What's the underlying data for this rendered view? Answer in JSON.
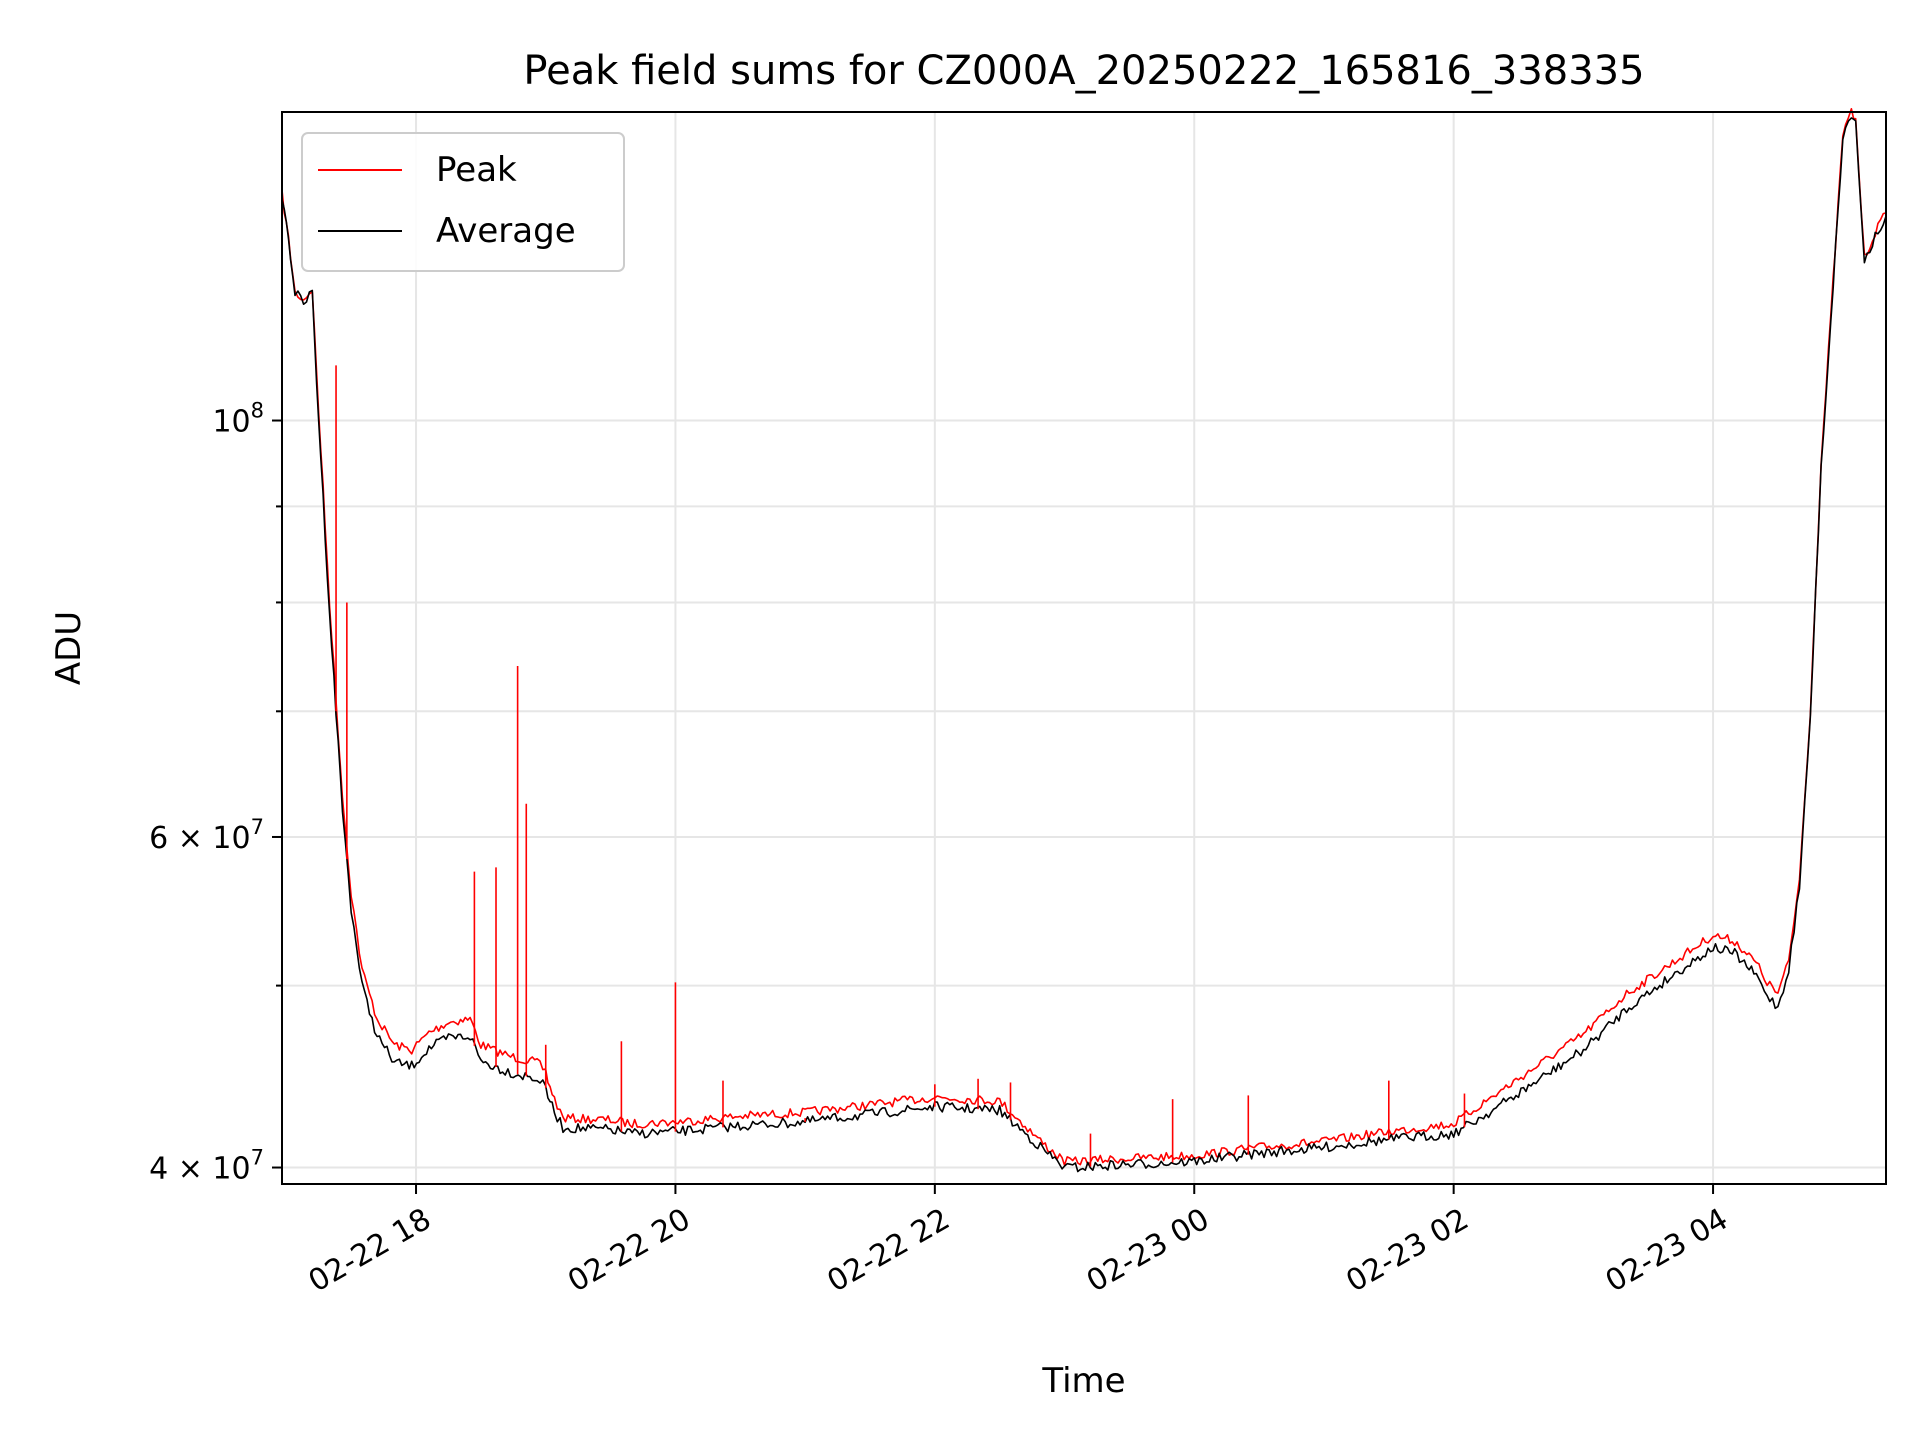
{
  "chart_data": {
    "type": "line",
    "title": "Peak field sums for CZ000A_20250222_165816_338335",
    "xlabel": "Time",
    "ylabel": "ADU",
    "yscale": "log",
    "xlim": [
      "2025-02-22T16:58",
      "2025-02-23T05:20"
    ],
    "ylim": [
      39200000,
      146000000
    ],
    "grid": true,
    "legend": "top-left",
    "xticks": [
      {
        "value": "2025-02-22T18:00",
        "label": "02-22 18"
      },
      {
        "value": "2025-02-22T20:00",
        "label": "02-22 20"
      },
      {
        "value": "2025-02-22T22:00",
        "label": "02-22 22"
      },
      {
        "value": "2025-02-23T00:00",
        "label": "02-23 00"
      },
      {
        "value": "2025-02-23T02:00",
        "label": "02-23 02"
      },
      {
        "value": "2025-02-23T04:00",
        "label": "02-23 04"
      }
    ],
    "yticks_major": [
      {
        "value": 100000000,
        "base": "10",
        "exp": "8",
        "mant": ""
      },
      {
        "value": 60000000,
        "base": "10",
        "exp": "7",
        "mant": "6"
      },
      {
        "value": 40000000,
        "base": "10",
        "exp": "7",
        "mant": "4"
      }
    ],
    "yticks_minor": [
      50000000,
      70000000,
      80000000,
      90000000
    ],
    "series": [
      {
        "name": "Peak",
        "color": "#ff0000",
        "x": [
          "2025-02-22T16:58",
          "2025-02-22T17:01",
          "2025-02-22T17:04",
          "2025-02-22T17:08",
          "2025-02-22T17:12",
          "2025-02-22T17:14",
          "2025-02-22T17:17",
          "2025-02-22T17:20",
          "2025-02-22T17:23",
          "2025-02-22T17:26",
          "2025-02-22T17:30",
          "2025-02-22T17:35",
          "2025-02-22T17:42",
          "2025-02-22T17:50",
          "2025-02-22T17:58",
          "2025-02-22T18:06",
          "2025-02-22T18:15",
          "2025-02-22T18:25",
          "2025-02-22T18:30",
          "2025-02-22T18:40",
          "2025-02-22T18:45",
          "2025-02-22T18:56",
          "2025-02-22T19:00",
          "2025-02-22T19:01",
          "2025-02-22T19:04",
          "2025-02-22T19:08",
          "2025-02-22T19:30",
          "2025-02-22T19:40",
          "2025-02-22T20:00",
          "2025-02-22T20:30",
          "2025-02-22T21:00",
          "2025-02-22T21:30",
          "2025-02-22T22:00",
          "2025-02-22T22:30",
          "2025-02-22T22:50",
          "2025-02-22T23:00",
          "2025-02-22T23:05",
          "2025-02-22T23:20",
          "2025-02-22T23:40",
          "2025-02-23T00:00",
          "2025-02-23T00:30",
          "2025-02-23T01:00",
          "2025-02-23T01:30",
          "2025-02-23T02:00",
          "2025-02-23T02:15",
          "2025-02-23T02:30",
          "2025-02-23T03:00",
          "2025-02-23T03:20",
          "2025-02-23T03:40",
          "2025-02-23T04:00",
          "2025-02-23T04:10",
          "2025-02-23T04:20",
          "2025-02-23T04:25",
          "2025-02-23T04:30",
          "2025-02-23T04:35",
          "2025-02-23T04:40",
          "2025-02-23T04:45",
          "2025-02-23T04:50",
          "2025-02-23T05:00",
          "2025-02-23T05:04",
          "2025-02-23T05:06",
          "2025-02-23T05:10",
          "2025-02-23T05:15",
          "2025-02-23T05:20"
        ],
        "y": [
          132000000,
          125000000,
          117000000,
          116000000,
          117500000,
          106000000,
          92000000,
          80000000,
          71000000,
          63000000,
          56000000,
          51000000,
          48000000,
          46500000,
          46200000,
          47200000,
          47800000,
          48000000,
          46500000,
          46000000,
          45800000,
          45500000,
          45000000,
          44500000,
          43500000,
          42500000,
          42400000,
          42200000,
          42300000,
          42600000,
          42800000,
          43200000,
          43600000,
          43400000,
          41200000,
          40300000,
          40300000,
          40400000,
          40500000,
          40600000,
          41000000,
          41300000,
          41800000,
          42200000,
          43400000,
          44600000,
          47100000,
          49500000,
          51300000,
          53200000,
          52800000,
          51400000,
          50200000,
          49500000,
          51500000,
          57000000,
          70000000,
          95000000,
          142000000,
          146000000,
          144500000,
          122000000,
          126000000,
          129000000
        ],
        "spikes": [
          {
            "x": "2025-02-22T17:23",
            "y": 107000000
          },
          {
            "x": "2025-02-22T17:28",
            "y": 80000000
          },
          {
            "x": "2025-02-22T18:27",
            "y": 57500000
          },
          {
            "x": "2025-02-22T18:37",
            "y": 57800000
          },
          {
            "x": "2025-02-22T18:47",
            "y": 74000000
          },
          {
            "x": "2025-02-22T18:51",
            "y": 62500000
          },
          {
            "x": "2025-02-22T19:00",
            "y": 46500000
          },
          {
            "x": "2025-02-22T19:35",
            "y": 46700000
          },
          {
            "x": "2025-02-22T20:00",
            "y": 50200000
          },
          {
            "x": "2025-02-22T20:22",
            "y": 44500000
          },
          {
            "x": "2025-02-22T21:00",
            "y": 42500000
          },
          {
            "x": "2025-02-22T22:00",
            "y": 44300000
          },
          {
            "x": "2025-02-22T22:20",
            "y": 44600000
          },
          {
            "x": "2025-02-22T22:35",
            "y": 44400000
          },
          {
            "x": "2025-02-22T23:12",
            "y": 41700000
          },
          {
            "x": "2025-02-22T23:50",
            "y": 43500000
          },
          {
            "x": "2025-02-23T00:25",
            "y": 43700000
          },
          {
            "x": "2025-02-23T01:30",
            "y": 44500000
          },
          {
            "x": "2025-02-23T02:05",
            "y": 43800000
          }
        ]
      },
      {
        "name": "Average",
        "color": "#000000",
        "x": [
          "2025-02-22T16:58",
          "2025-02-22T17:01",
          "2025-02-22T17:04",
          "2025-02-22T17:08",
          "2025-02-22T17:12",
          "2025-02-22T17:14",
          "2025-02-22T17:17",
          "2025-02-22T17:20",
          "2025-02-22T17:23",
          "2025-02-22T17:26",
          "2025-02-22T17:30",
          "2025-02-22T17:35",
          "2025-02-22T17:42",
          "2025-02-22T17:50",
          "2025-02-22T17:58",
          "2025-02-22T18:06",
          "2025-02-22T18:15",
          "2025-02-22T18:25",
          "2025-02-22T18:30",
          "2025-02-22T18:40",
          "2025-02-22T18:45",
          "2025-02-22T18:56",
          "2025-02-22T19:00",
          "2025-02-22T19:01",
          "2025-02-22T19:04",
          "2025-02-22T19:08",
          "2025-02-22T19:30",
          "2025-02-22T19:40",
          "2025-02-22T20:00",
          "2025-02-22T20:30",
          "2025-02-22T21:00",
          "2025-02-22T21:30",
          "2025-02-22T22:00",
          "2025-02-22T22:30",
          "2025-02-22T22:50",
          "2025-02-22T23:00",
          "2025-02-22T23:05",
          "2025-02-22T23:20",
          "2025-02-22T23:40",
          "2025-02-23T00:00",
          "2025-02-23T00:30",
          "2025-02-23T01:00",
          "2025-02-23T01:30",
          "2025-02-23T02:00",
          "2025-02-23T02:15",
          "2025-02-23T02:30",
          "2025-02-23T03:00",
          "2025-02-23T03:20",
          "2025-02-23T03:40",
          "2025-02-23T04:00",
          "2025-02-23T04:10",
          "2025-02-23T04:20",
          "2025-02-23T04:25",
          "2025-02-23T04:30",
          "2025-02-23T04:35",
          "2025-02-23T04:40",
          "2025-02-23T04:45",
          "2025-02-23T04:50",
          "2025-02-23T05:00",
          "2025-02-23T05:04",
          "2025-02-23T05:06",
          "2025-02-23T05:10",
          "2025-02-23T05:15",
          "2025-02-23T05:20"
        ],
        "y": [
          132000000,
          125000000,
          117000000,
          115500000,
          117000000,
          105000000,
          91000000,
          79000000,
          70000000,
          62000000,
          55000000,
          50000000,
          47000000,
          45500000,
          45300000,
          46300000,
          46900000,
          47000000,
          45600000,
          45100000,
          44900000,
          44600000,
          44100000,
          43700000,
          42800000,
          42000000,
          41900000,
          41700000,
          41800000,
          42100000,
          42300000,
          42700000,
          43100000,
          42900000,
          40900000,
          40000000,
          40000000,
          40100000,
          40200000,
          40300000,
          40700000,
          41000000,
          41400000,
          41700000,
          42700000,
          43800000,
          46200000,
          48600000,
          50500000,
          52400000,
          52000000,
          50600000,
          49400000,
          48700000,
          51000000,
          56500000,
          69500000,
          94500000,
          141500000,
          145500000,
          144000000,
          121500000,
          125500000,
          128500000
        ]
      }
    ]
  }
}
